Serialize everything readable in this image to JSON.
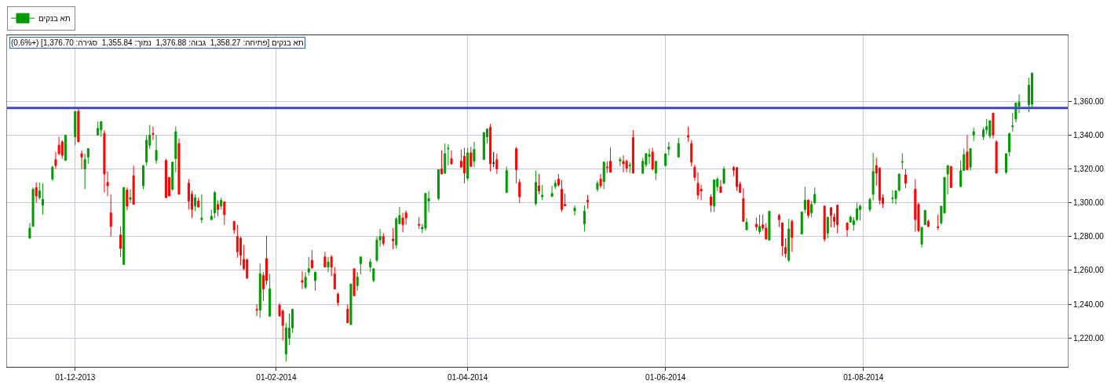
{
  "chart_data": {
    "type": "candlestick",
    "annotations": [
      "תא בנקים [פתיחה: 1,358.27  גבוה: 1,376.88  נמוך: 1,355.84  סגירה: 1,376.70] (+0.6%)"
    ],
    "legend": "top left",
    "grid": true,
    "x": [
      "2013-11-17",
      "2013-11-18",
      "2013-11-19",
      "2013-11-20",
      "2013-11-21",
      "2013-11-24",
      "2013-11-25",
      "2013-11-26",
      "2013-11-27",
      "2013-11-28",
      "2013-12-01",
      "2013-12-02",
      "2013-12-03",
      "2013-12-04",
      "2013-12-05",
      "2013-12-08",
      "2013-12-09",
      "2013-12-10",
      "2013-12-11",
      "2013-12-12",
      "2013-12-15",
      "2013-12-16",
      "2013-12-17",
      "2013-12-18",
      "2013-12-19",
      "2013-12-22",
      "2013-12-23",
      "2013-12-24",
      "2013-12-25",
      "2013-12-26",
      "2013-12-29",
      "2013-12-30",
      "2013-12-31",
      "2014-01-01",
      "2014-01-02",
      "2014-01-05",
      "2014-01-06",
      "2014-01-07",
      "2014-01-08",
      "2014-01-09",
      "2014-01-12",
      "2014-01-13",
      "2014-01-14",
      "2014-01-15",
      "2014-01-16",
      "2014-01-19",
      "2014-01-20",
      "2014-01-21",
      "2014-01-22",
      "2014-01-23",
      "2014-01-26",
      "2014-01-27",
      "2014-01-28",
      "2014-01-29",
      "2014-01-30",
      "2014-02-02",
      "2014-02-03",
      "2014-02-04",
      "2014-02-05",
      "2014-02-06",
      "2014-02-09",
      "2014-02-10",
      "2014-02-11",
      "2014-02-12",
      "2014-02-13",
      "2014-02-16",
      "2014-02-17",
      "2014-02-18",
      "2014-02-19",
      "2014-02-20",
      "2014-02-23",
      "2014-02-24",
      "2014-02-25",
      "2014-02-26",
      "2014-02-27",
      "2014-03-02",
      "2014-03-03",
      "2014-03-04",
      "2014-03-05",
      "2014-03-06",
      "2014-03-09",
      "2014-03-10",
      "2014-03-11",
      "2014-03-12",
      "2014-03-13",
      "2014-03-17",
      "2014-03-18",
      "2014-03-19",
      "2014-03-20",
      "2014-03-23",
      "2014-03-24",
      "2014-03-25",
      "2014-03-26",
      "2014-03-27",
      "2014-03-30",
      "2014-03-31",
      "2014-04-01",
      "2014-04-02",
      "2014-04-03",
      "2014-04-06",
      "2014-04-07",
      "2014-04-08",
      "2014-04-09",
      "2014-04-10",
      "2014-04-13",
      "2014-04-16",
      "2014-04-17",
      "2014-04-22",
      "2014-04-23",
      "2014-04-24",
      "2014-04-27",
      "2014-04-28",
      "2014-04-29",
      "2014-04-30",
      "2014-05-01",
      "2014-05-04",
      "2014-05-07",
      "2014-05-08",
      "2014-05-11",
      "2014-05-12",
      "2014-05-13",
      "2014-05-14",
      "2014-05-15",
      "2014-05-18",
      "2014-05-19",
      "2014-05-20",
      "2014-05-21",
      "2014-05-22",
      "2014-05-25",
      "2014-05-26",
      "2014-05-27",
      "2014-05-28",
      "2014-05-29",
      "2014-06-01",
      "2014-06-02",
      "2014-06-05",
      "2014-06-08",
      "2014-06-09",
      "2014-06-10",
      "2014-06-11",
      "2014-06-12",
      "2014-06-15",
      "2014-06-16",
      "2014-06-17",
      "2014-06-18",
      "2014-06-19",
      "2014-06-22",
      "2014-06-23",
      "2014-06-24",
      "2014-06-25",
      "2014-06-26",
      "2014-06-29",
      "2014-06-30",
      "2014-07-01",
      "2014-07-02",
      "2014-07-03",
      "2014-07-06",
      "2014-07-07",
      "2014-07-08",
      "2014-07-09",
      "2014-07-10",
      "2014-07-13",
      "2014-07-14",
      "2014-07-15",
      "2014-07-16",
      "2014-07-17",
      "2014-07-20",
      "2014-07-21",
      "2014-07-22",
      "2014-07-23",
      "2014-07-24",
      "2014-07-27",
      "2014-07-28",
      "2014-07-29",
      "2014-07-30",
      "2014-07-31",
      "2014-08-03",
      "2014-08-04",
      "2014-08-05",
      "2014-08-06",
      "2014-08-07",
      "2014-08-10",
      "2014-08-11",
      "2014-08-12",
      "2014-08-13",
      "2014-08-14",
      "2014-08-17",
      "2014-08-18",
      "2014-08-19",
      "2014-08-20",
      "2014-08-21",
      "2014-08-24",
      "2014-08-25",
      "2014-08-26",
      "2014-08-27",
      "2014-08-28",
      "2014-08-31",
      "2014-09-01",
      "2014-09-02",
      "2014-09-03",
      "2014-09-04",
      "2014-09-07",
      "2014-09-08",
      "2014-09-09",
      "2014-09-10",
      "2014-09-11",
      "2014-09-14",
      "2014-09-15",
      "2014-09-16",
      "2014-09-17",
      "2014-09-18",
      "2014-09-21",
      "2014-09-22"
    ],
    "series": [
      {
        "name": "תא בנקים",
        "colors": [
          "#009900",
          "#009900",
          "#ff0000",
          "#009900",
          "#009900",
          "#009900",
          "#ff0000",
          "#ff0000",
          "#ff0000",
          "#009900",
          "#009900",
          "#ff0000",
          "#ff0000",
          "#009900",
          "#009900",
          "#009900",
          "#009900",
          "#ff0000",
          "#ff0000",
          "#ff0000",
          "#ff0000",
          "#009900",
          "#ff0000",
          "#009900",
          "#ff0000",
          "#009900",
          "#009900",
          "#009900",
          "#ff0000",
          "#009900",
          "#ff0000",
          "#ff0000",
          "#009900",
          "#009900",
          "#ff0000",
          "#ff0000",
          "#ff0000",
          "#009900",
          "#ff0000",
          "#009900",
          "#009900",
          "#009900",
          "#ff0000",
          "#009900",
          "#ff0000",
          "#ff0000",
          "#ff0000",
          "#ff0000",
          "#ff0000",
          "#ff0000",
          "#ff0000",
          "#009900",
          "#ff0000",
          "#ff0000",
          "#009900",
          "#ff0000",
          "#ff0000",
          "#009900",
          "#009900",
          "#009900",
          "#ff0000",
          "#009900",
          "#009900",
          "#ff0000",
          "#009900",
          "#ff0000",
          "#009900",
          "#ff0000",
          "#ff0000",
          "#ff0000",
          "#ff0000",
          "#009900",
          "#ff0000",
          "#009900",
          "#009900",
          "#009900",
          "#009900",
          "#009900",
          "#009900",
          "#ff0000",
          "#ff0000",
          "#009900",
          "#009900",
          "#ff0000",
          "#ff0000",
          "#ff0000",
          "#009900",
          "#009900",
          "#009900",
          "#009900",
          "#ff0000",
          "#009900",
          "#009900",
          "#ff0000",
          "#ff0000",
          "#ff0000",
          "#009900",
          "#ff0000",
          "#009900",
          "#009900",
          "#009900",
          "#ff0000",
          "#000000",
          "#ff0000",
          "#009900",
          "#ff0000",
          "#ff0000",
          "#009900",
          "#ff0000",
          "#009900",
          "#009900",
          "#009900",
          "#ff0000",
          "#ff0000",
          "#ff0000",
          "#009900",
          "#009900",
          "#ff0000",
          "#009900",
          "#ff0000",
          "#009900",
          "#ff0000",
          "#ff0000",
          "#009900",
          "#ff0000",
          "#ff0000",
          "#009900",
          "#ff0000",
          "#009900",
          "#009900",
          "#009900",
          "#ff0000",
          "#009900",
          "#009900",
          "#009900",
          "#009900",
          "#ff0000",
          "#ff0000",
          "#ff0000",
          "#ff0000",
          "#ff0000",
          "#ff0000",
          "#009900",
          "#009900",
          "#ff0000",
          "#009900",
          "#ff0000",
          "#ff0000",
          "#ff0000",
          "#ff0000",
          "#009900",
          "#ff0000",
          "#009900",
          "#ff0000",
          "#ff0000",
          "#009900",
          "#ff0000",
          "#ff0000",
          "#ff0000",
          "#009900",
          "#ff0000",
          "#009900",
          "#009900",
          "#ff0000",
          "#009900",
          "#009900",
          "#ff0000",
          "#009900",
          "#ff0000",
          "#ff0000",
          "#ff0000",
          "#ff0000",
          "#009900",
          "#009900",
          "#009900",
          "#009900",
          "#009900",
          "#009900",
          "#ff0000",
          "#ff0000",
          "#ff0000",
          "#009900",
          "#009900",
          "#009900",
          "#009900",
          "#ff0000",
          "#ff0000",
          "#ff0000",
          "#009900",
          "#009900",
          "#ff0000",
          "#ff0000",
          "#009900",
          "#009900",
          "#009900",
          "#ff0000",
          "#009900",
          "#009900",
          "#ff0000",
          "#009900",
          "#009900",
          "#009900",
          "#009900",
          "#009900",
          "#ff0000",
          "#ff0000",
          "#009900",
          "#009900",
          "#009900",
          "#009900",
          "#009900",
          "#009900",
          "#009900"
        ],
        "ohlc": [
          [
            1279,
            1288,
            1279,
            1285
          ],
          [
            1286,
            1309,
            1286,
            1308
          ],
          [
            1309,
            1312,
            1300,
            1304
          ],
          [
            1303,
            1312,
            1302,
            1307
          ],
          [
            1298.5,
            1311.5,
            1293,
            1302
          ],
          [
            1314,
            1322,
            1313,
            1321
          ],
          [
            1325.5,
            1330,
            1320,
            1322
          ],
          [
            1334,
            1339,
            1328,
            1329
          ],
          [
            1336,
            1337,
            1326,
            1328
          ],
          [
            1325,
            1340,
            1325,
            1340
          ],
          [
            1339,
            1354,
            1334,
            1354
          ],
          [
            1354,
            1356,
            1336,
            1336
          ],
          [
            1329,
            1331,
            1320,
            1327
          ],
          [
            1320,
            1329,
            1308,
            1325.5
          ],
          [
            1327,
            1332,
            1323,
            1332
          ],
          [
            1340,
            1348,
            1340,
            1344
          ],
          [
            1343,
            1348,
            1339,
            1348
          ],
          [
            1341,
            1343,
            1306,
            1317
          ],
          [
            1312,
            1318.5,
            1304,
            1310
          ],
          [
            1294,
            1305,
            1280,
            1286
          ],
          [
            1281,
            1286,
            1268,
            1273
          ],
          [
            1263.5,
            1309,
            1263.5,
            1309
          ],
          [
            1307.5,
            1309,
            1295.5,
            1298
          ],
          [
            1302,
            1308,
            1300,
            1303
          ],
          [
            1316,
            1322,
            1299,
            1299
          ],
          [
            1310,
            1322,
            1308,
            1322
          ],
          [
            1324,
            1340,
            1322,
            1337
          ],
          [
            1334,
            1346,
            1332,
            1340
          ],
          [
            1341,
            1345,
            1337,
            1340.5
          ],
          [
            1325,
            1340,
            1323,
            1331
          ],
          [
            1325,
            1326,
            1303,
            1303
          ],
          [
            1315,
            1315,
            1304,
            1304
          ],
          [
            1308,
            1324,
            1307,
            1324
          ],
          [
            1326,
            1345,
            1318,
            1342
          ],
          [
            1335,
            1338,
            1305,
            1305
          ],
          [
            1311.5,
            1314,
            1296,
            1301
          ],
          [
            1305,
            1307,
            1291,
            1296
          ],
          [
            1298,
            1305,
            1295,
            1303
          ],
          [
            1301,
            1303,
            1297,
            1297.5
          ],
          [
            1290,
            1305,
            1288,
            1291
          ],
          [
            1290,
            1296,
            1290,
            1292
          ],
          [
            1294,
            1307,
            1291,
            1306
          ],
          [
            1299,
            1301.5,
            1292,
            1296
          ],
          [
            1298,
            1303,
            1296,
            1301.5
          ],
          [
            1300.5,
            1301,
            1287,
            1293
          ],
          [
            1289,
            1289,
            1281.5,
            1284
          ],
          [
            1280,
            1287,
            1267.5,
            1271
          ],
          [
            1279,
            1280,
            1263,
            1269
          ],
          [
            1266.5,
            1275,
            1260,
            1261
          ],
          [
            1266.5,
            1266.5,
            1255,
            1255.5
          ],
          [
            1237,
            1240,
            1233,
            1236.5
          ],
          [
            1236.5,
            1264,
            1232,
            1258
          ],
          [
            1257,
            1259,
            1242,
            1249
          ],
          [
            1267,
            1280.5,
            1251.5,
            1254
          ],
          [
            1233,
            1258,
            1232.5,
            1249
          ],
          [
            1239.5,
            1240.5,
            1233,
            1233
          ],
          [
            1236,
            1237,
            1218.5,
            1227.5
          ],
          [
            1210.5,
            1229,
            1206,
            1226
          ],
          [
            1220,
            1234.5,
            1216,
            1226
          ],
          [
            1226,
            1237,
            1223,
            1237
          ],
          [
            1254,
            1259.5,
            1249,
            1253
          ],
          [
            1250,
            1259,
            1249,
            1256
          ],
          [
            1259,
            1268,
            1257,
            1261
          ],
          [
            1266,
            1272,
            1261,
            1261.5
          ],
          [
            1254,
            1259,
            1248,
            1259
          ],
          [
            1268,
            1271,
            1262,
            1262
          ],
          [
            1262,
            1268,
            1259,
            1265
          ],
          [
            1268,
            1269,
            1256.5,
            1262
          ],
          [
            1258,
            1262,
            1249,
            1249
          ],
          [
            1246,
            1247,
            1239,
            1241
          ],
          [
            1237,
            1240,
            1229,
            1229
          ],
          [
            1228,
            1252,
            1228,
            1252
          ],
          [
            1261,
            1261,
            1245,
            1245
          ],
          [
            1251,
            1259,
            1248,
            1256
          ],
          [
            1264,
            1268,
            1257.5,
            1268
          ],
          [
            1262,
            1267,
            1259,
            1265
          ],
          [
            1254,
            1261,
            1253,
            1261
          ],
          [
            1266,
            1280,
            1265,
            1278
          ],
          [
            1278,
            1284.5,
            1274,
            1280
          ],
          [
            1280,
            1282,
            1274.5,
            1276
          ],
          [
            1278.5,
            1285,
            1272.5,
            1277.5
          ],
          [
            1275,
            1291.5,
            1273,
            1290.5
          ],
          [
            1287.5,
            1297.5,
            1287.5,
            1292.5
          ],
          [
            1291,
            1294,
            1282.5,
            1287
          ],
          [
            1294,
            1295.5,
            1287,
            1291
          ],
          [
            1287.2,
            1291.5,
            1284.5,
            1286.8
          ],
          [
            1284.5,
            1287.5,
            1282,
            1285.5
          ],
          [
            1285,
            1306,
            1283.5,
            1305.5
          ],
          [
            1301,
            1307,
            1294.5,
            1302.5
          ],
          [
            1302.5,
            1319.5,
            1301.5,
            1319.5
          ],
          [
            1320,
            1331,
            1317,
            1317
          ],
          [
            1317.5,
            1335,
            1317,
            1329
          ],
          [
            1331.8,
            1334.5,
            1322,
            1332.2
          ],
          [
            1326,
            1331,
            1322.5,
            1323
          ],
          [
            1324.5,
            1331.5,
            1320.5,
            1321
          ],
          [
            1327.5,
            1332.5,
            1311.5,
            1317.5
          ],
          [
            1314.5,
            1332.5,
            1313,
            1329.5
          ],
          [
            1329.5,
            1333,
            1321,
            1321.5
          ],
          [
            1324.5,
            1336,
            1321,
            1331.5
          ],
          [
            1325.5,
            1341.5,
            1325.5,
            1341.5
          ],
          [
            1339,
            1344,
            1335,
            1343.5
          ],
          [
            1344.5,
            1346.5,
            1318.5,
            1323
          ],
          [
            1323.5,
            1330,
            1321,
            1323.5
          ],
          [
            1325.5,
            1329,
            1317,
            1320
          ],
          [
            1306,
            1321.5,
            1306,
            1319
          ],
          [
            1332,
            1333,
            1311.5,
            1319.5
          ],
          [
            1312,
            1314,
            1300,
            1303.5
          ],
          [
            1299.5,
            1319,
            1298.5,
            1312
          ],
          [
            1310,
            1317,
            1305,
            1307
          ],
          [
            1303.5,
            1310.5,
            1301.5,
            1304.5
          ],
          [
            1303.7,
            1310,
            1303.5,
            1305.5
          ],
          [
            1309.5,
            1313.5,
            1308,
            1311.5
          ],
          [
            1314,
            1317,
            1309.5,
            1310.5
          ],
          [
            1308,
            1313.5,
            1294.5,
            1296
          ],
          [
            1299,
            1305.5,
            1298,
            1298.2
          ],
          [
            1295.2,
            1298.5,
            1292.5,
            1296.8
          ],
          [
            1287.5,
            1298.5,
            1283,
            1295
          ],
          [
            1301.5,
            1304.5,
            1296.5,
            1300.5
          ],
          [
            1308,
            1313,
            1306.5,
            1311.5
          ],
          [
            1314,
            1317,
            1308.5,
            1310
          ],
          [
            1312.5,
            1324.5,
            1308,
            1324
          ],
          [
            1321.2,
            1324.5,
            1317.5,
            1320.8
          ],
          [
            1324.5,
            1332.5,
            1318,
            1318
          ],
          [
            1324.7,
            1327,
            1321.5,
            1325.5
          ],
          [
            1324.5,
            1328,
            1318,
            1323
          ],
          [
            1324.5,
            1325.5,
            1318,
            1320.5
          ],
          [
            1321.8,
            1324,
            1317.5,
            1322.2
          ],
          [
            1338.5,
            1343,
            1317.5,
            1317.5
          ],
          [
            1317.5,
            1326.5,
            1317,
            1324.5
          ],
          [
            1322.5,
            1329.5,
            1321,
            1329
          ],
          [
            1327.3,
            1332,
            1323,
            1328.5
          ],
          [
            1330,
            1332.5,
            1319,
            1320
          ],
          [
            1317.5,
            1324.5,
            1313.5,
            1324.5
          ],
          [
            1322,
            1329,
            1321.5,
            1329
          ],
          [
            1331.7,
            1336,
            1328,
            1333
          ],
          [
            1327,
            1338.5,
            1327,
            1335
          ],
          [
            1339.7,
            1345,
            1336,
            1338.8
          ],
          [
            1335,
            1337,
            1321.5,
            1324
          ],
          [
            1321,
            1322.5,
            1313,
            1315
          ],
          [
            1311.5,
            1318,
            1302,
            1304.5
          ],
          [
            1308,
            1310.5,
            1301.5,
            1307
          ],
          [
            1303.5,
            1305,
            1294.5,
            1298.5
          ],
          [
            1298,
            1313.5,
            1294.5,
            1313.5
          ],
          [
            1309.5,
            1315,
            1307,
            1314
          ],
          [
            1309.5,
            1313.5,
            1306,
            1306
          ],
          [
            1311.5,
            1321.5,
            1311,
            1320
          ],
          [
            1320.8,
            1321.7,
            1315.7,
            1319.2
          ],
          [
            1320.8,
            1320.8,
            1307,
            1309.5
          ],
          [
            1311,
            1312.5,
            1306,
            1306
          ],
          [
            1302.5,
            1308.5,
            1289,
            1289
          ],
          [
            1284,
            1291,
            1284,
            1288.5
          ],
          [
            1287.3,
            1291.3,
            1283.5,
            1285.7
          ],
          [
            1283,
            1293,
            1281.5,
            1286
          ],
          [
            1287,
            1293,
            1283.5,
            1285
          ],
          [
            1285,
            1288,
            1278.5,
            1278.5
          ],
          [
            1278,
            1295,
            1277.5,
            1295
          ],
          [
            1292.5,
            1293.5,
            1285.5,
            1290
          ],
          [
            1288,
            1288.5,
            1268.5,
            1274.5
          ],
          [
            1273.5,
            1279,
            1267.5,
            1270
          ],
          [
            1266,
            1290.5,
            1265,
            1284.5
          ],
          [
            1289,
            1290,
            1271,
            1279.5
          ],
          [
            1281.5,
            1294.5,
            1281.5,
            1294.5
          ],
          [
            1296,
            1309.5,
            1294,
            1301.5
          ],
          [
            1301.5,
            1302,
            1291,
            1292.5
          ],
          [
            1294,
            1301,
            1291.5,
            1299
          ],
          [
            1300,
            1309,
            1299,
            1305
          ],
          [
            1298,
            1298.5,
            1277,
            1278.5
          ],
          [
            1282,
            1291.5,
            1279,
            1291.5
          ],
          [
            1297,
            1297.5,
            1285.5,
            1292.5
          ],
          [
            1291.5,
            1293.5,
            1285.5,
            1289
          ],
          [
            1298.5,
            1299,
            1282,
            1287
          ],
          [
            1288,
            1288.5,
            1280,
            1284
          ],
          [
            1288.5,
            1292.5,
            1288.5,
            1291.5
          ],
          [
            1287,
            1291.5,
            1283.5,
            1289.5
          ],
          [
            1290,
            1300,
            1289,
            1296.5
          ],
          [
            1296,
            1299,
            1289.5,
            1298
          ],
          [
            1296,
            1303,
            1294.5,
            1302
          ],
          [
            1305,
            1329.5,
            1301.5,
            1318.5
          ],
          [
            1322,
            1326.5,
            1310,
            1317.5
          ],
          [
            1320.5,
            1321,
            1299,
            1301.5
          ],
          [
            1303,
            1305,
            1297,
            1299.5
          ],
          [
            1302.3,
            1307.5,
            1299.5,
            1302.7
          ],
          [
            1302.5,
            1307.5,
            1299,
            1307
          ],
          [
            1307.5,
            1317,
            1306.5,
            1317
          ],
          [
            1324,
            1329.3,
            1319.8,
            1324.3
          ],
          [
            1316.5,
            1320,
            1308.5,
            1311.5
          ],
          [
            1308,
            1314,
            1283,
            1290
          ],
          [
            1299,
            1300,
            1282.5,
            1283.5
          ],
          [
            1275.5,
            1285.5,
            1273.5,
            1285.5
          ],
          [
            1287,
            1295.5,
            1287,
            1295.5
          ],
          [
            1289,
            1290,
            1285.5,
            1286
          ],
          [
            1285.7,
            1293,
            1284,
            1285.4
          ],
          [
            1288,
            1298,
            1287,
            1298
          ],
          [
            1294,
            1315,
            1293.5,
            1315
          ],
          [
            1317,
            1322,
            1305,
            1322
          ],
          [
            1321.5,
            1321.5,
            1309,
            1309
          ],
          [
            1309.5,
            1325,
            1309.5,
            1319
          ],
          [
            1319,
            1332,
            1319,
            1328.5
          ],
          [
            1330,
            1340,
            1319.5,
            1319.5
          ],
          [
            1321,
            1332,
            1319,
            1332
          ],
          [
            1340,
            1344.5,
            1336.5,
            1342
          ],
          [
            1339,
            1344.5,
            1337,
            1343
          ],
          [
            1343,
            1349.5,
            1340.5,
            1345
          ],
          [
            1339.5,
            1348.5,
            1338,
            1348.5
          ],
          [
            1353,
            1353,
            1338,
            1340
          ],
          [
            1336,
            1337,
            1317.5,
            1317.5
          ],
          [
            1318,
            1329,
            1317,
            1329
          ],
          [
            1330,
            1341,
            1327.5,
            1341
          ],
          [
            1345,
            1353,
            1342,
            1345.5
          ],
          [
            1349.5,
            1359,
            1347.5,
            1359
          ],
          [
            1357,
            1364,
            1353,
            1359.5
          ],
          [
            1358,
            1374,
            1353.5,
            1369.5
          ],
          [
            1358.27,
            1376.88,
            1355.84,
            1376.7
          ]
        ]
      }
    ],
    "xlim": [
      "2013-11-10",
      "2014-10-03"
    ],
    "xticks": [
      {
        "value": "2013-12-01",
        "label": "01-12-2013"
      },
      {
        "value": "2014-02-01",
        "label": "01-02-2014"
      },
      {
        "value": "2014-04-01",
        "label": "01-04-2014"
      },
      {
        "value": "2014-06-01",
        "label": "01-06-2014"
      },
      {
        "value": "2014-08-01",
        "label": "01-08-2014"
      }
    ],
    "ylim": [
      1203,
      1399
    ],
    "yticks": [
      {
        "value": 1220,
        "label": "1,220.00"
      },
      {
        "value": 1240,
        "label": "1,240.00"
      },
      {
        "value": 1260,
        "label": "1,260.00"
      },
      {
        "value": 1280,
        "label": "1,280.00"
      },
      {
        "value": 1300,
        "label": "1,300.00"
      },
      {
        "value": 1320,
        "label": "1,320.00"
      },
      {
        "value": 1340,
        "label": "1,340.00"
      },
      {
        "value": 1360,
        "label": "1,360.00"
      }
    ],
    "ref_lines": [
      {
        "axis": "y",
        "value": 1356,
        "color": "#4444c8"
      }
    ]
  }
}
